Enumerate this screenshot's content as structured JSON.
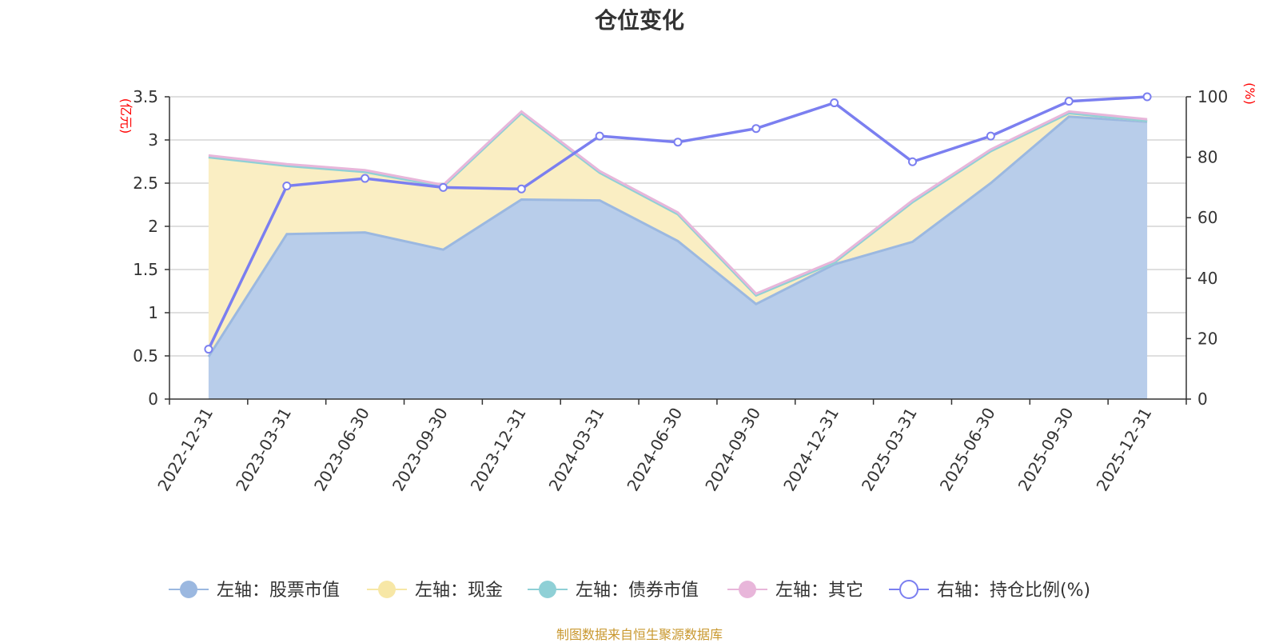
{
  "title": "仓位变化",
  "source_note": "制图数据来自恒生聚源数据库",
  "colors": {
    "stock": "#9bb8e0",
    "stock_fill": "#b8cdea",
    "cash": "#f7e7a6",
    "cash_fill": "#faeec3",
    "bond": "#8fd0d6",
    "other": "#e8b6da",
    "ratio": "#7b7ff0",
    "grid": "#cccccc",
    "axis": "#333333",
    "unit": "#ff0000"
  },
  "chart_data": {
    "type": "area",
    "title": "仓位变化",
    "categories": [
      "2022-12-31",
      "2023-03-31",
      "2023-06-30",
      "2023-09-30",
      "2023-12-31",
      "2024-03-31",
      "2024-06-30",
      "2024-09-30",
      "2024-12-31",
      "2025-03-31",
      "2025-06-30",
      "2025-09-30",
      "2025-12-31"
    ],
    "left_axis": {
      "unit": "(亿元)",
      "min": 0,
      "max": 3.5,
      "ticks": [
        "0",
        "0.5",
        "1",
        "1.5",
        "2",
        "2.5",
        "3",
        "3.5"
      ]
    },
    "right_axis": {
      "unit": "(%)",
      "min": 0,
      "max": 100,
      "ticks": [
        "0",
        "20",
        "40",
        "60",
        "80",
        "100"
      ]
    },
    "series": [
      {
        "key": "stock",
        "name": "左轴：股票市值",
        "axis": "left",
        "stack": true,
        "values": [
          0.49,
          1.91,
          1.93,
          1.73,
          2.31,
          2.3,
          1.83,
          1.1,
          1.56,
          1.82,
          2.5,
          3.27,
          3.21
        ]
      },
      {
        "key": "cash",
        "name": "左轴：现金",
        "axis": "left",
        "stack": true,
        "values": [
          2.31,
          0.79,
          0.7,
          0.73,
          1.0,
          0.32,
          0.31,
          0.1,
          0.02,
          0.46,
          0.37,
          0.04,
          0.01
        ]
      },
      {
        "key": "bond",
        "name": "左轴：债券市值",
        "axis": "left",
        "stack": true,
        "values": [
          0,
          0,
          0,
          0,
          0,
          0,
          0,
          0,
          0,
          0,
          0,
          0,
          0
        ]
      },
      {
        "key": "other",
        "name": "左轴：其它",
        "axis": "left",
        "stack": true,
        "values": [
          0.02,
          0.02,
          0.02,
          0.02,
          0.02,
          0.02,
          0.02,
          0.02,
          0.02,
          0.02,
          0.02,
          0.02,
          0.02
        ]
      },
      {
        "key": "ratio",
        "name": "右轴：持仓比例(%)",
        "axis": "right",
        "stack": false,
        "values": [
          16.5,
          70.5,
          73.0,
          70.0,
          69.5,
          87.0,
          85.0,
          89.5,
          98.0,
          78.5,
          87.0,
          98.5,
          100.0
        ]
      }
    ]
  }
}
